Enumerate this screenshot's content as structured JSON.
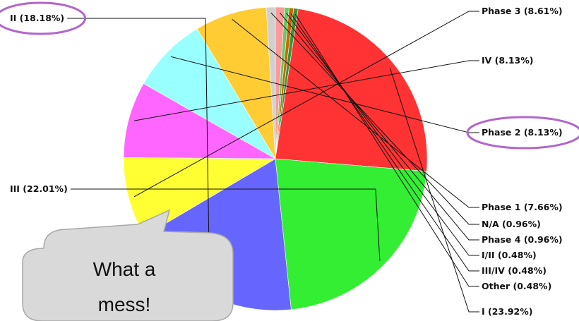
{
  "chart_data": {
    "type": "pie",
    "title": "",
    "slices": [
      {
        "label": "II (18.18%)",
        "value": 18.18,
        "color": "#6666ff"
      },
      {
        "label": "Phase 3 (8.61%)",
        "value": 8.61,
        "color": "#ffff33"
      },
      {
        "label": "IV (8.13%)",
        "value": 8.13,
        "color": "#ff66ff"
      },
      {
        "label": "Phase 2 (8.13%)",
        "value": 8.13,
        "color": "#99ffff"
      },
      {
        "label": "Phase 1 (7.66%)",
        "value": 7.66,
        "color": "#ffcc33"
      },
      {
        "label": "N/A (0.96%)",
        "value": 0.96,
        "color": "#d0d0d0"
      },
      {
        "label": "Phase 4 (0.96%)",
        "value": 0.96,
        "color": "#ff9999"
      },
      {
        "label": "I/II (0.48%)",
        "value": 0.48,
        "color": "#66cc66"
      },
      {
        "label": "III/IV (0.48%)",
        "value": 0.48,
        "color": "#cc6600"
      },
      {
        "label": "Other (0.48%)",
        "value": 0.48,
        "color": "#339933"
      },
      {
        "label": "I (23.92%)",
        "value": 23.92,
        "color": "#ff3333"
      },
      {
        "label": "III (22.01%)",
        "value": 22.01,
        "color": "#33ee33"
      }
    ],
    "highlighted": [
      "II (18.18%)",
      "Phase 2 (8.13%)"
    ],
    "highlight_color": "#b266cc"
  },
  "callout": {
    "text_line1": "What a",
    "text_line2": "mess!"
  }
}
